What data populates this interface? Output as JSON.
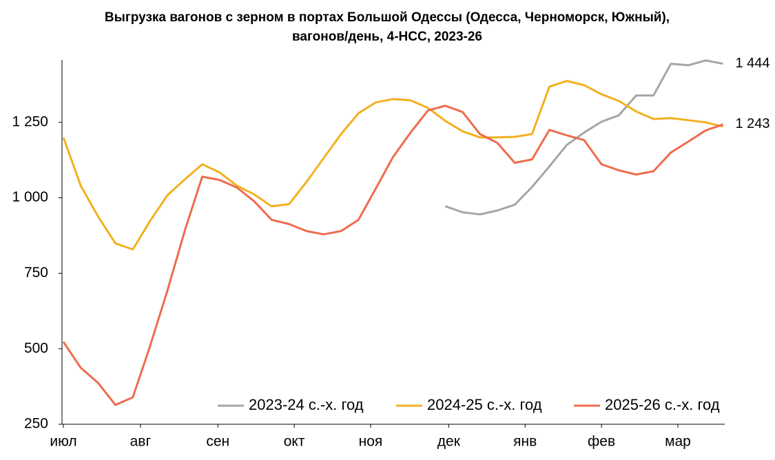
{
  "chart_data": {
    "type": "line",
    "title": [
      "Выгрузка вагонов с зерном в портах Большой Одессы (Одесса, Черноморск, Южный),",
      "вагонов/день, 4-НСС, 2023-26"
    ],
    "x": [
      0,
      1,
      2,
      3,
      4,
      5,
      6,
      7,
      8,
      9,
      10,
      11,
      12,
      13,
      14,
      15,
      16,
      17,
      18,
      19,
      20,
      21,
      22,
      23,
      24,
      25,
      26,
      27,
      28,
      29,
      30,
      31,
      32,
      33,
      34,
      35,
      36,
      37,
      38
    ],
    "xlim": [
      0,
      38.1
    ],
    "xticks": [
      {
        "value": 0,
        "label": "июл"
      },
      {
        "value": 4.44,
        "label": "авг"
      },
      {
        "value": 8.9,
        "label": "сен"
      },
      {
        "value": 13.3,
        "label": "окт"
      },
      {
        "value": 17.7,
        "label": "ноя"
      },
      {
        "value": 22.2,
        "label": "дек"
      },
      {
        "value": 26.6,
        "label": "янв"
      },
      {
        "value": 31.0,
        "label": "фев"
      },
      {
        "value": 35.4,
        "label": "мар"
      }
    ],
    "ylim": [
      250,
      1457
    ],
    "yticks": [
      250,
      500,
      750,
      {
        "value": 1000,
        "label": "1 000"
      },
      {
        "value": 1250,
        "label": "1 250"
      }
    ],
    "grid": false,
    "legend": "bottom-right",
    "series": [
      {
        "name": "2023-24 с.-х. год",
        "color": "#a5a5a5",
        "values": [
          null,
          null,
          null,
          null,
          null,
          null,
          null,
          null,
          null,
          null,
          null,
          null,
          null,
          null,
          null,
          null,
          null,
          null,
          null,
          null,
          null,
          null,
          972,
          952,
          945,
          958,
          977,
          1036,
          1104,
          1175,
          1216,
          1252,
          1273,
          1339,
          1339,
          1444,
          1439,
          1455,
          1444
        ],
        "value_labels": [
          null,
          null,
          null,
          null,
          null,
          null,
          null,
          null,
          null,
          null,
          null,
          null,
          null,
          null,
          null,
          null,
          null,
          null,
          null,
          null,
          null,
          null,
          null,
          null,
          null,
          null,
          null,
          null,
          null,
          null,
          null,
          null,
          null,
          null,
          null,
          null,
          null,
          null,
          "1 444"
        ]
      },
      {
        "name": "2024-25 с.-х. год",
        "color": "#f2b01e",
        "values": [
          1200,
          1040,
          938,
          849,
          829,
          924,
          1009,
          1061,
          1111,
          1084,
          1040,
          1011,
          972,
          979,
          1052,
          1132,
          1211,
          1280,
          1316,
          1327,
          1323,
          1298,
          1255,
          1220,
          1200,
          1200,
          1202,
          1211,
          1368,
          1387,
          1373,
          1343,
          1321,
          1286,
          1261,
          1264,
          1257,
          1250,
          1236
        ]
      },
      {
        "name": "2025-26 с.-х. год",
        "color": "#ee6b4d",
        "values": [
          523,
          437,
          387,
          314,
          339,
          510,
          694,
          892,
          1070,
          1059,
          1034,
          988,
          927,
          913,
          890,
          879,
          890,
          927,
          1031,
          1136,
          1216,
          1289,
          1305,
          1284,
          1211,
          1182,
          1116,
          1127,
          1225,
          1207,
          1191,
          1111,
          1091,
          1077,
          1088,
          1150,
          1186,
          1223,
          1243
        ],
        "value_labels": [
          null,
          null,
          null,
          null,
          null,
          null,
          null,
          null,
          null,
          null,
          null,
          null,
          null,
          null,
          null,
          null,
          null,
          null,
          null,
          null,
          null,
          null,
          null,
          null,
          null,
          null,
          null,
          null,
          null,
          null,
          null,
          null,
          null,
          null,
          null,
          null,
          null,
          null,
          "1 243"
        ]
      }
    ]
  }
}
